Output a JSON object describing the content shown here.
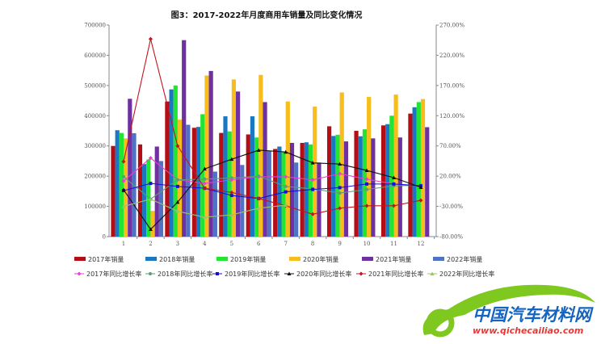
{
  "chart_data": {
    "type": "bar+line",
    "title": "图3：2017-2022年月度商用车销量及同比变化情况",
    "categories": [
      "1",
      "2",
      "3",
      "4",
      "5",
      "6",
      "7",
      "8",
      "9",
      "10",
      "11",
      "12"
    ],
    "y_left": {
      "min": 0,
      "max": 700000,
      "step": 100000,
      "ticks": [
        "0",
        "100000",
        "200000",
        "300000",
        "400000",
        "500000",
        "600000",
        "700000"
      ]
    },
    "y_right": {
      "min": -80,
      "max": 270,
      "step": 50,
      "ticks": [
        "-80.00%",
        "-30.00%",
        "20.00%",
        "70.00%",
        "120.00%",
        "170.00%",
        "220.00%",
        "270.00%"
      ]
    },
    "grid": false,
    "legend_position": "bottom",
    "bar_series": [
      {
        "name": "2017年销量",
        "color": "#b50d16",
        "values": [
          300000,
          305000,
          447000,
          360000,
          343000,
          338000,
          290000,
          310000,
          365000,
          350000,
          368000,
          407000
        ]
      },
      {
        "name": "2018年销量",
        "color": "#1a78c2",
        "values": [
          352000,
          240000,
          487000,
          363000,
          398000,
          398000,
          298000,
          312000,
          333000,
          332000,
          372000,
          428000
        ]
      },
      {
        "name": "2019年销量",
        "color": "#22e532",
        "values": [
          343000,
          255000,
          500000,
          405000,
          348000,
          328000,
          280000,
          305000,
          337000,
          355000,
          400000,
          445000
        ]
      },
      {
        "name": "2020年销量",
        "color": "#f7bd1d",
        "values": [
          325000,
          85000,
          387000,
          533000,
          520000,
          535000,
          447000,
          430000,
          477000,
          462000,
          470000,
          455000
        ]
      },
      {
        "name": "2021年销量",
        "color": "#7031a0",
        "values": [
          456000,
          298000,
          650000,
          548000,
          480000,
          445000,
          310000,
          245000,
          315000,
          325000,
          328000,
          362000
        ]
      },
      {
        "name": "2022年销量",
        "color": "#4f72c4",
        "values": [
          342000,
          250000,
          370000,
          215000,
          237000,
          283000,
          245000,
          null,
          null,
          null,
          null,
          null
        ]
      }
    ],
    "line_series": [
      {
        "name": "2017年同比增长率",
        "color": "#e83fd6",
        "marker": "diamond",
        "values": [
          12,
          50,
          14,
          8,
          14,
          19,
          19,
          14,
          24,
          15,
          7,
          4
        ]
      },
      {
        "name": "2018年同比增长率",
        "color": "#5e9c7a",
        "marker": "circle",
        "values": [
          19,
          -18,
          14,
          15,
          17,
          20,
          3,
          -1,
          -8,
          -2,
          4,
          5
        ]
      },
      {
        "name": "2019年同比增长率",
        "color": "#1010d8",
        "marker": "square",
        "values": [
          -4,
          8,
          3,
          0,
          -12,
          -17,
          -6,
          -2,
          1,
          7,
          7,
          4
        ]
      },
      {
        "name": "2020年同比增长率",
        "color": "#111111",
        "marker": "triangle",
        "values": [
          -2.5,
          -68,
          -23,
          32,
          48,
          63,
          60,
          42,
          40,
          29.5,
          17.5,
          1.5
        ]
      },
      {
        "name": "2021年同比增长率",
        "color": "#c0161e",
        "marker": "diamond",
        "values": [
          44,
          247,
          70,
          0,
          -7,
          -17,
          -29,
          -43,
          -33,
          -29,
          -29,
          -20
        ]
      },
      {
        "name": "2022年同比增长率",
        "color": "#9bc46a",
        "marker": "triangle",
        "values": [
          -30,
          -18,
          -38,
          -48,
          -44,
          -33,
          -28,
          null,
          null,
          null,
          null,
          null
        ]
      }
    ]
  },
  "watermark": {
    "name": "中国汽车材料网",
    "url": "www.qichecailiao.com"
  }
}
